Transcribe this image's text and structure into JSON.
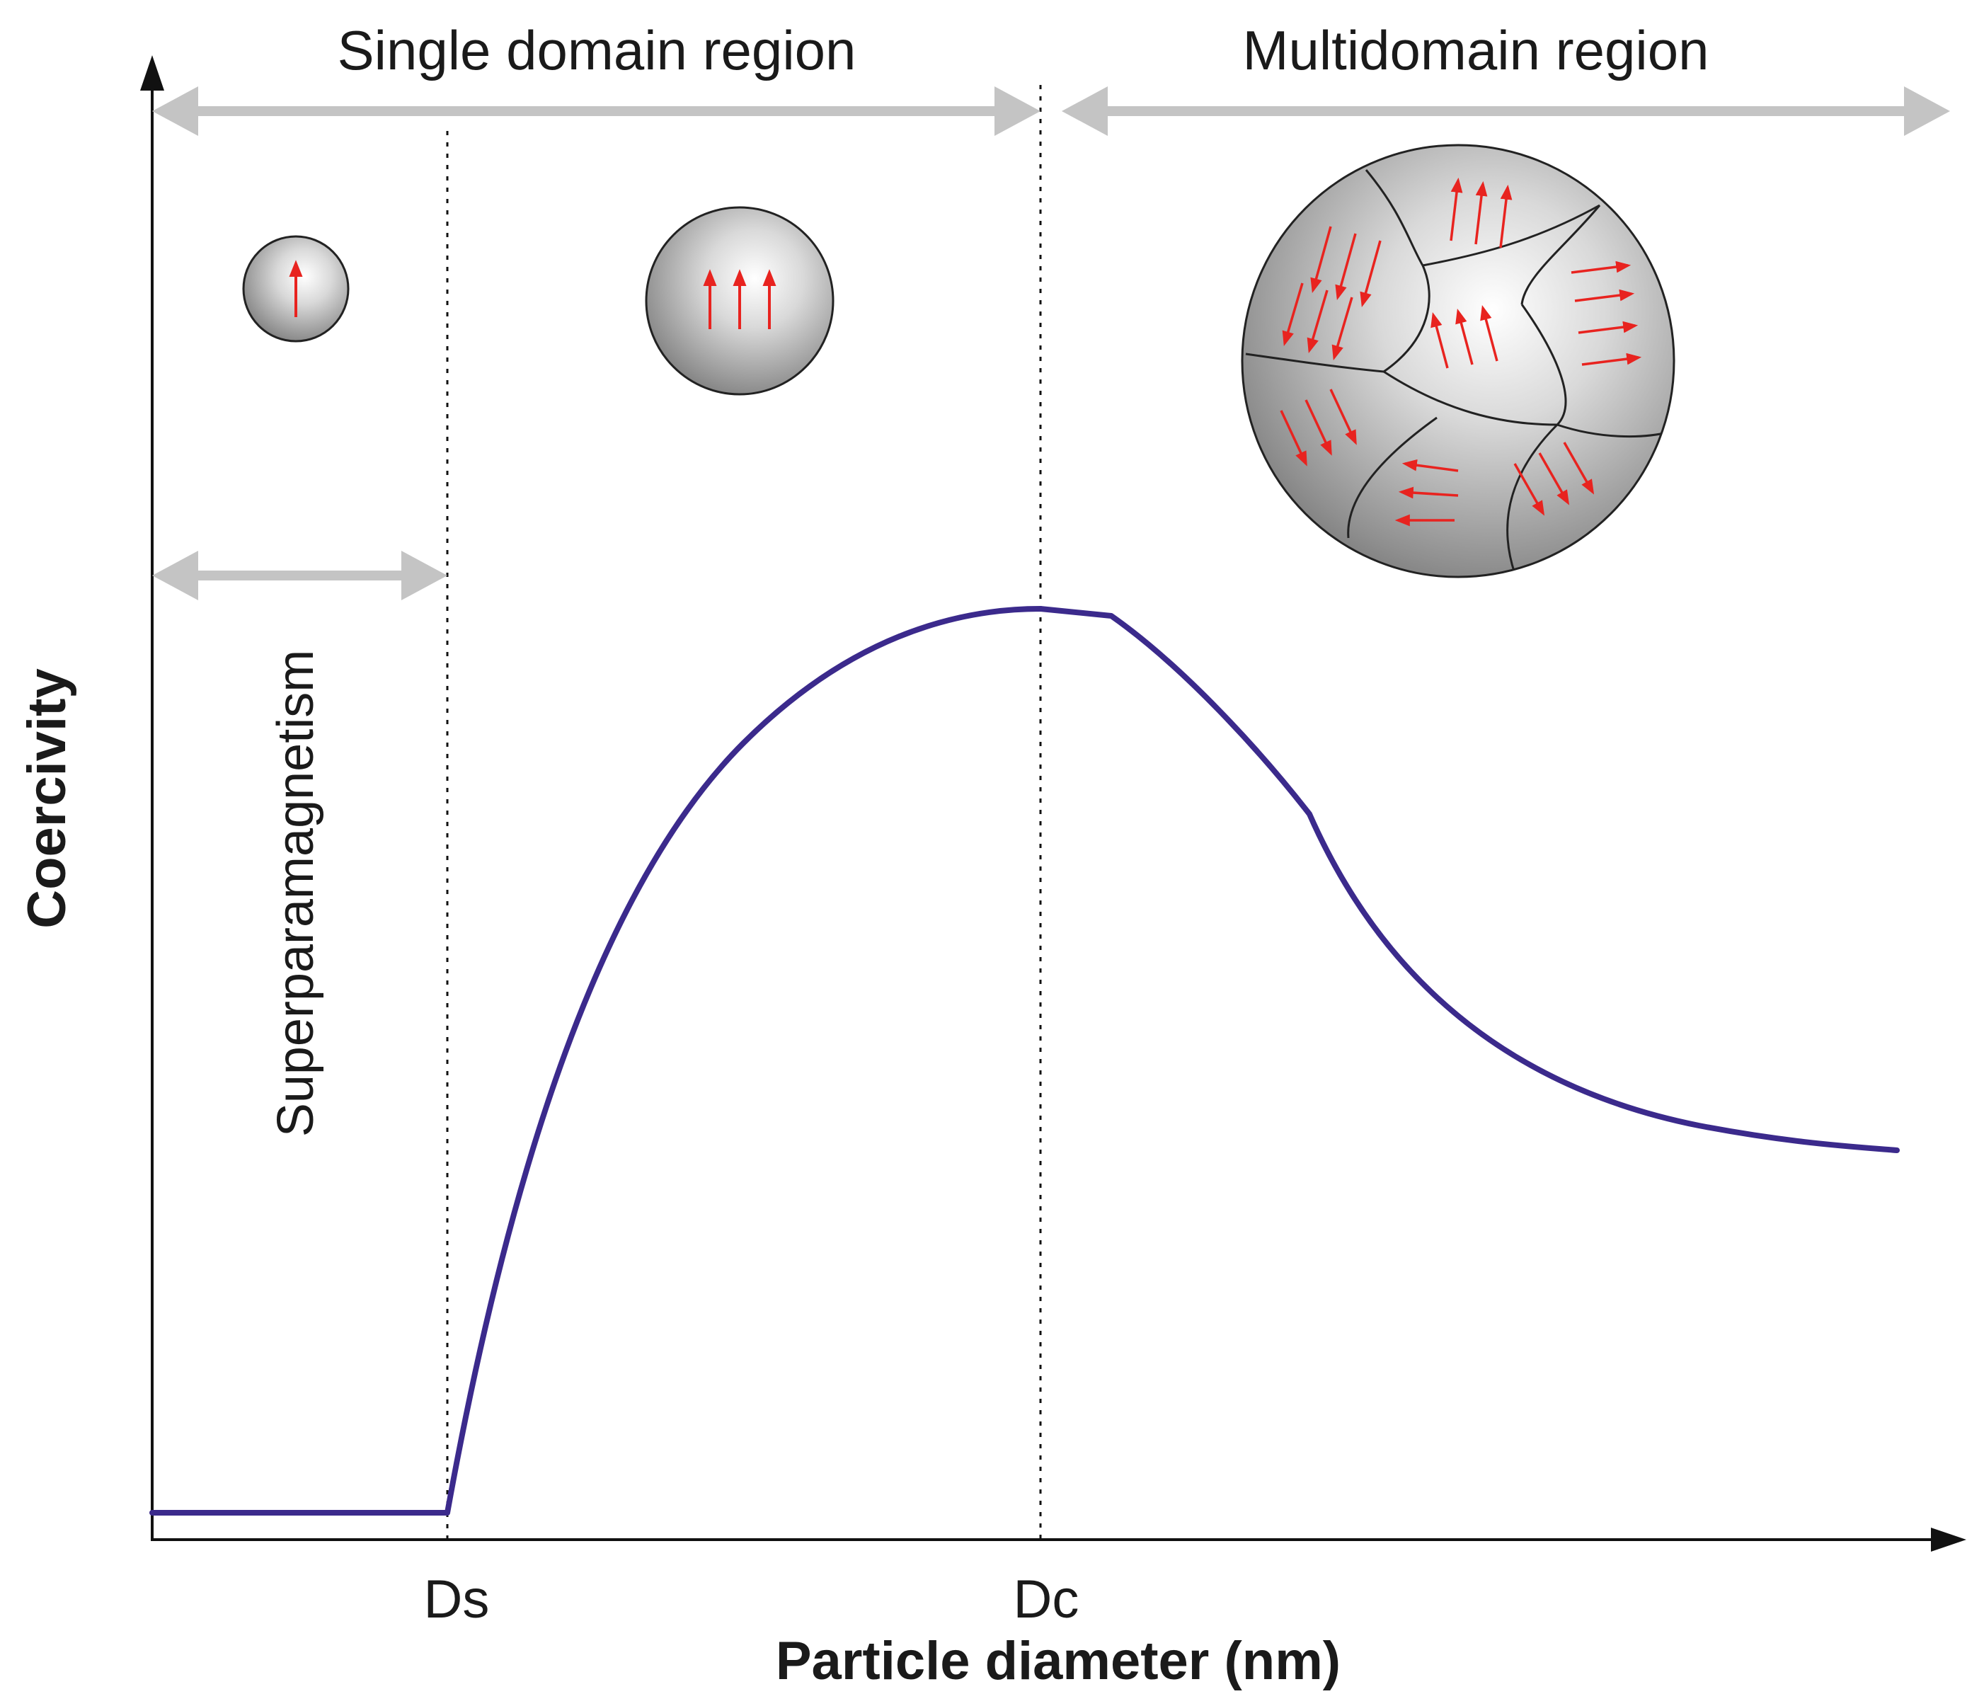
{
  "labels": {
    "single_domain": "Single domain region",
    "multidomain": "Multidomain region",
    "superparamagnetism": "Superparamagnetism",
    "y_axis": "Coercivity",
    "x_axis": "Particle diameter (nm)",
    "ds": "Ds",
    "dc": "Dc"
  },
  "colors": {
    "curve": "#3b2a8c",
    "region_arrow": "#c4c4c4",
    "moment_arrow": "#e8231f",
    "axis": "#111111"
  },
  "particles": [
    {
      "id": "superparamagnetic",
      "moments": "up"
    },
    {
      "id": "single-domain",
      "moments": "up"
    },
    {
      "id": "multidomain",
      "moments": "mixed"
    }
  ]
}
